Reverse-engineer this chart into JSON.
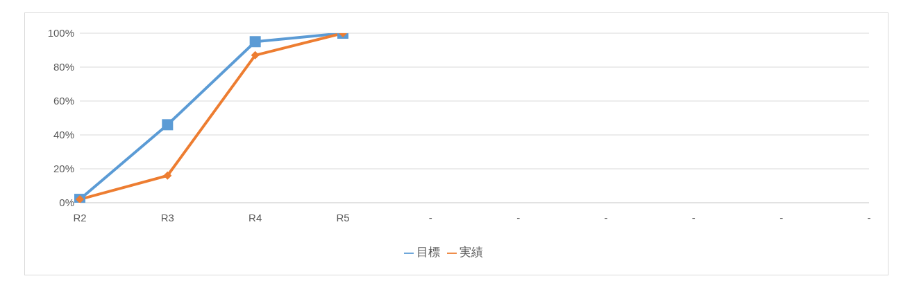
{
  "chart_data": {
    "type": "line",
    "categories": [
      "R2",
      "R3",
      "R4",
      "R5",
      "-",
      "-",
      "-",
      "-",
      "-",
      "-"
    ],
    "series": [
      {
        "name": "目標",
        "color": "#5b9bd5",
        "marker": "square",
        "values": [
          2,
          46,
          95,
          100,
          null,
          null,
          null,
          null,
          null,
          null
        ]
      },
      {
        "name": "実績",
        "color": "#ed7d31",
        "marker": "diamond",
        "values": [
          2,
          16,
          87,
          100,
          null,
          null,
          null,
          null,
          null,
          null
        ]
      }
    ],
    "ylim": [
      0,
      100
    ],
    "yticks": [
      {
        "value": 0,
        "label": "0%"
      },
      {
        "value": 20,
        "label": "20%"
      },
      {
        "value": 40,
        "label": "40%"
      },
      {
        "value": 60,
        "label": "60%"
      },
      {
        "value": 80,
        "label": "80%"
      },
      {
        "value": 100,
        "label": "100%"
      }
    ],
    "grid": "y",
    "legend": "bottom"
  }
}
